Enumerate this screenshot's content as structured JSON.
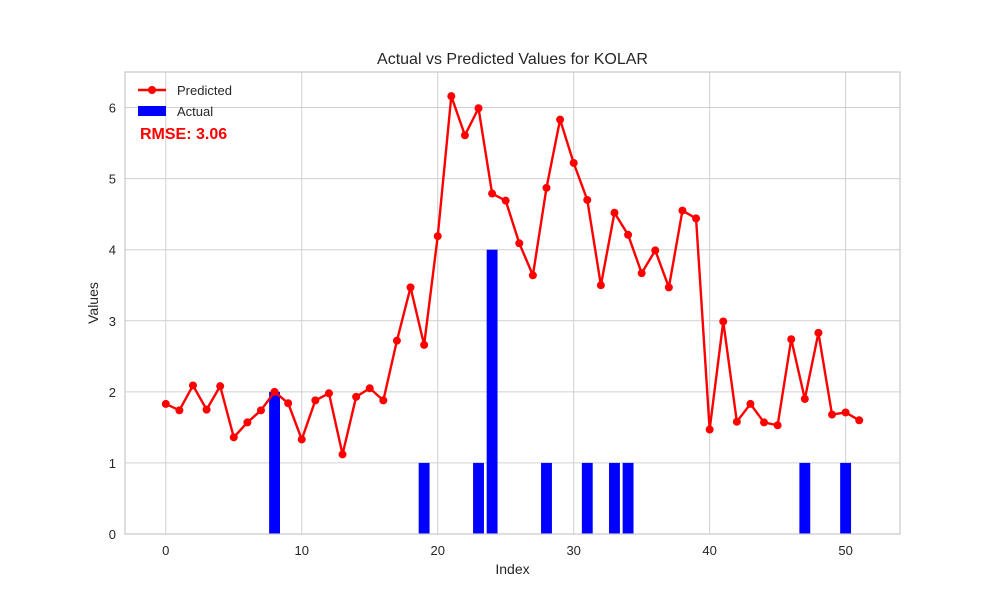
{
  "chart_data": {
    "type": "bar+line",
    "title": "Actual vs Predicted Values for KOLAR",
    "xlabel": "Index",
    "ylabel": "Values",
    "xlim": [
      -3,
      54
    ],
    "ylim": [
      0,
      6.5
    ],
    "xticks": [
      0,
      10,
      20,
      30,
      40,
      50
    ],
    "yticks": [
      0,
      1,
      2,
      3,
      4,
      5,
      6
    ],
    "grid": true,
    "legend_position": "top-left",
    "annotation": "RMSE: 3.06",
    "colors": {
      "predicted": "#ff0000",
      "actual": "#0000ff",
      "annotation": "#ff0000",
      "grid": "#d0d0d0",
      "frame": "#c8c8c8"
    },
    "series": [
      {
        "name": "Predicted",
        "kind": "line",
        "x": [
          0,
          1,
          2,
          3,
          4,
          5,
          6,
          7,
          8,
          9,
          10,
          11,
          12,
          13,
          14,
          15,
          16,
          17,
          18,
          19,
          20,
          21,
          22,
          23,
          24,
          25,
          26,
          27,
          28,
          29,
          30,
          31,
          32,
          33,
          34,
          35,
          36,
          37,
          38,
          39,
          40,
          41,
          42,
          43,
          44,
          45,
          46,
          47,
          48,
          49,
          50,
          51
        ],
        "values": [
          1.83,
          1.74,
          2.09,
          1.75,
          2.08,
          1.36,
          1.57,
          1.74,
          2.0,
          1.84,
          1.33,
          1.88,
          1.98,
          1.12,
          1.93,
          2.05,
          1.88,
          2.72,
          3.47,
          2.66,
          4.19,
          6.16,
          5.61,
          5.99,
          4.79,
          4.69,
          4.09,
          3.64,
          4.87,
          5.83,
          5.22,
          4.7,
          3.5,
          4.52,
          4.21,
          3.67,
          3.99,
          3.47,
          4.55,
          4.44,
          1.47,
          2.99,
          1.58,
          1.83,
          1.57,
          1.53,
          2.74,
          1.9,
          2.83,
          1.68,
          1.71,
          1.6
        ]
      },
      {
        "name": "Actual",
        "kind": "bar",
        "x": [
          0,
          1,
          2,
          3,
          4,
          5,
          6,
          7,
          8,
          9,
          10,
          11,
          12,
          13,
          14,
          15,
          16,
          17,
          18,
          19,
          20,
          21,
          22,
          23,
          24,
          25,
          26,
          27,
          28,
          29,
          30,
          31,
          32,
          33,
          34,
          35,
          36,
          37,
          38,
          39,
          40,
          41,
          42,
          43,
          44,
          45,
          46,
          47,
          48,
          49,
          50,
          51
        ],
        "values": [
          0,
          0,
          0,
          0,
          0,
          0,
          0,
          0,
          2,
          0,
          0,
          0,
          0,
          0,
          0,
          0,
          0,
          0,
          0,
          1,
          0,
          0,
          0,
          1,
          4,
          0,
          0,
          0,
          1,
          0,
          0,
          1,
          0,
          1,
          1,
          0,
          0,
          0,
          0,
          0,
          0,
          0,
          0,
          0,
          0,
          0,
          0,
          1,
          0,
          0,
          1,
          0
        ]
      }
    ]
  }
}
